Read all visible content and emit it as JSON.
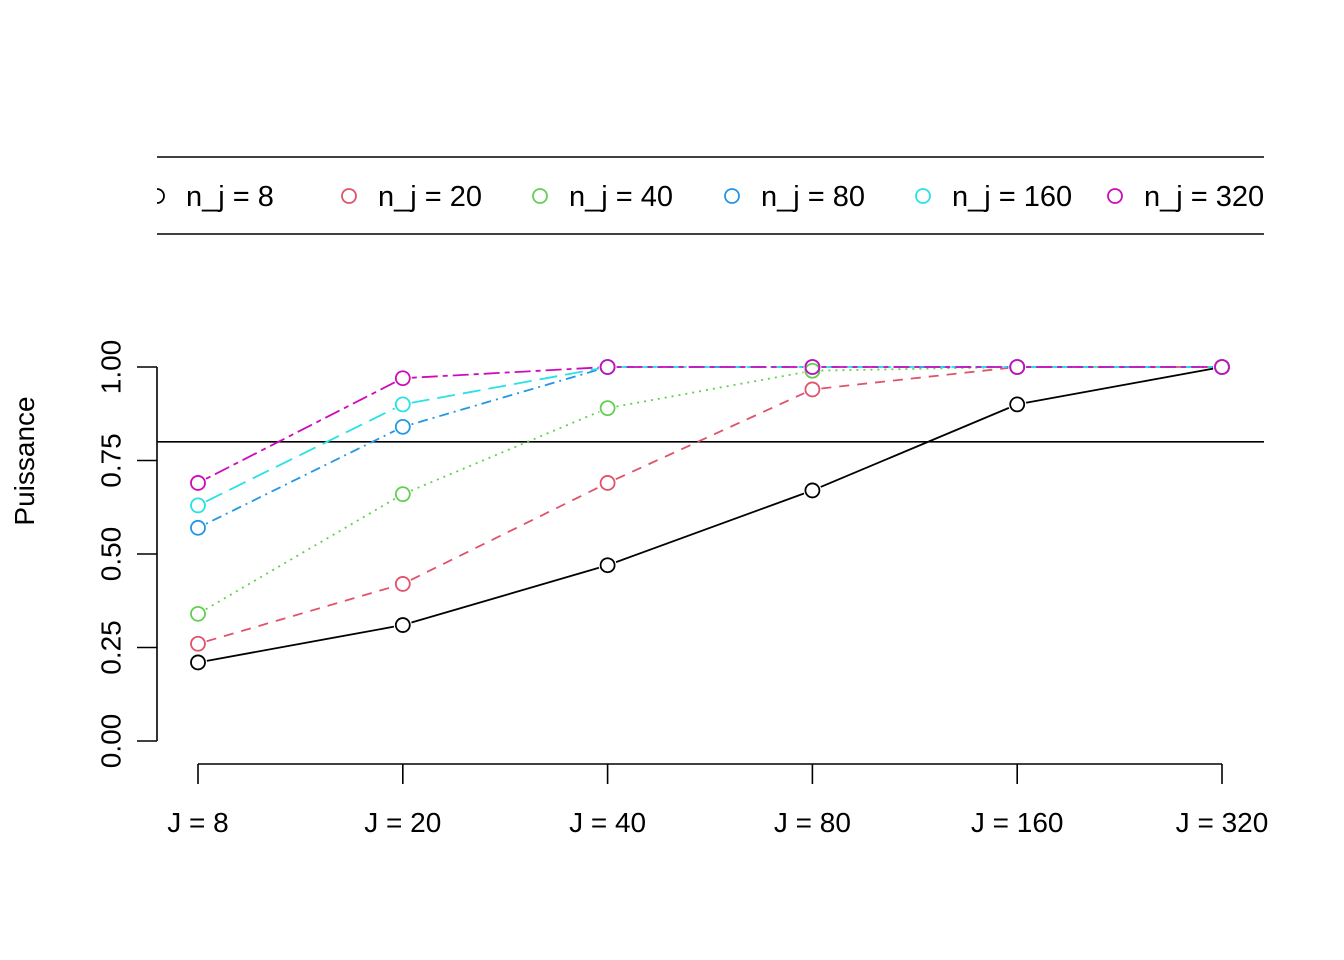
{
  "chart_data": {
    "type": "line",
    "title": "",
    "xlabel": "",
    "ylabel": "Puissance",
    "ylim": [
      0,
      1
    ],
    "y_ticks": [
      "0.00",
      "0.25",
      "0.50",
      "0.75",
      "1.00"
    ],
    "categories": [
      "J = 8",
      "J = 20",
      "J = 40",
      "J = 80",
      "J = 160",
      "J = 320"
    ],
    "reference_line": 0.8,
    "legend_position": "top",
    "grid": false,
    "series": [
      {
        "name": "n_j = 8",
        "color": "#000000",
        "dash": "solid",
        "values": [
          0.21,
          0.31,
          0.47,
          0.67,
          0.9,
          1.0
        ]
      },
      {
        "name": "n_j = 20",
        "color": "#DF536B",
        "dash": "dashed",
        "values": [
          0.26,
          0.42,
          0.69,
          0.94,
          1.0,
          1.0
        ]
      },
      {
        "name": "n_j = 40",
        "color": "#61D04F",
        "dash": "dotted",
        "values": [
          0.34,
          0.66,
          0.89,
          0.99,
          1.0,
          1.0
        ]
      },
      {
        "name": "n_j = 80",
        "color": "#2297E6",
        "dash": "dotdash",
        "values": [
          0.57,
          0.84,
          1.0,
          1.0,
          1.0,
          1.0
        ]
      },
      {
        "name": "n_j = 160",
        "color": "#28E2E5",
        "dash": "longdash",
        "values": [
          0.63,
          0.9,
          1.0,
          1.0,
          1.0,
          1.0
        ]
      },
      {
        "name": "n_j = 320",
        "color": "#CD0BBC",
        "dash": "twodash",
        "values": [
          0.69,
          0.97,
          1.0,
          1.0,
          1.0,
          1.0
        ]
      }
    ]
  }
}
